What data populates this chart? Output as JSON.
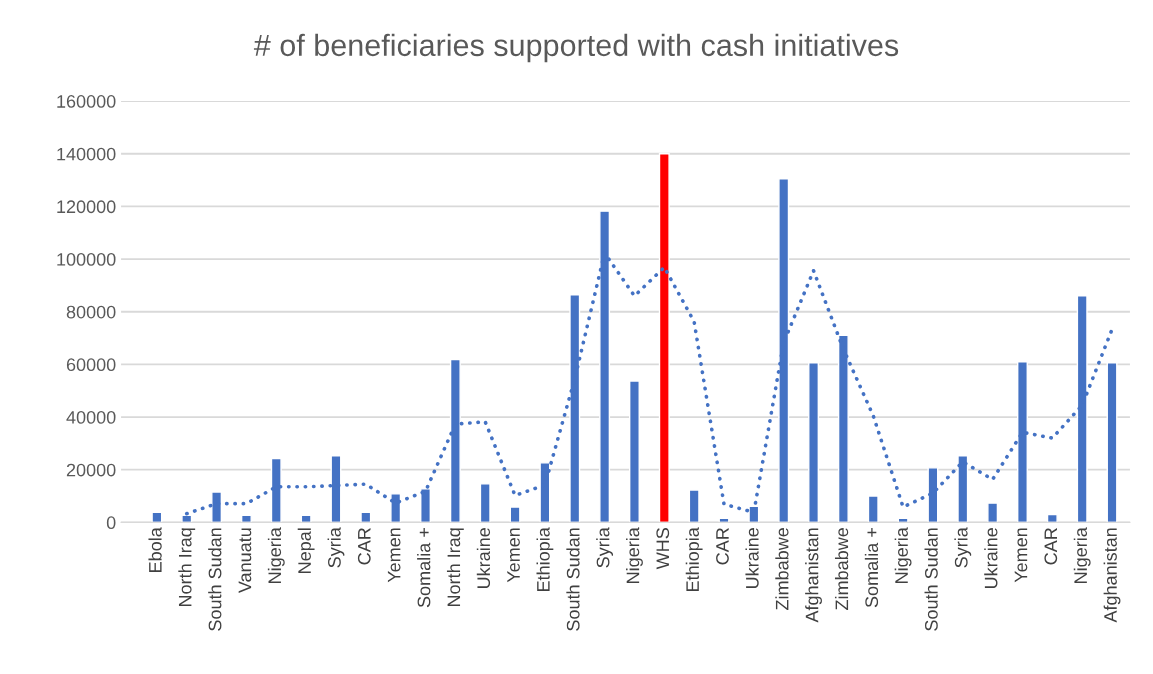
{
  "chart_data": {
    "type": "bar",
    "title": "# of beneficiaries supported with cash initiatives",
    "categories": [
      "Ebola",
      "North Iraq",
      "South Sudan",
      "Vanuatu",
      "Nigeria",
      "Nepal",
      "Syria",
      "CAR",
      "Yemen",
      "Somalia +",
      "North Iraq",
      "Ukraine",
      "Yemen",
      "Ethiopia",
      "South Sudan",
      "Syria",
      "Nigeria",
      "WHS",
      "Ethiopia",
      "CAR",
      "Ukraine",
      "Zimbabwe",
      "Afghanistan",
      "Zimbabwe",
      "Somalia +",
      "Nigeria",
      "South Sudan",
      "Syria",
      "Ukraine",
      "Yemen",
      "CAR",
      "Nigeria",
      "Afghanistan"
    ],
    "series": [
      {
        "values": [
          3800,
          2700,
          11500,
          2700,
          24200,
          2700,
          25300,
          3800,
          10800,
          12700,
          61800,
          14600,
          5800,
          22600,
          86400,
          118200,
          53700,
          140000,
          12300,
          1500,
          6100,
          130500,
          60600,
          71000,
          10000,
          1500,
          20700,
          25300,
          7300,
          61000,
          3000,
          86000,
          60600
        ],
        "colors": [
          "#4472c4",
          "#4472c4",
          "#4472c4",
          "#4472c4",
          "#4472c4",
          "#4472c4",
          "#4472c4",
          "#4472c4",
          "#4472c4",
          "#4472c4",
          "#4472c4",
          "#4472c4",
          "#4472c4",
          "#4472c4",
          "#4472c4",
          "#4472c4",
          "#4472c4",
          "#ff0000",
          "#4472c4",
          "#4472c4",
          "#4472c4",
          "#4472c4",
          "#4472c4",
          "#4472c4",
          "#4472c4",
          "#4472c4",
          "#4472c4",
          "#4472c4",
          "#4472c4",
          "#4472c4",
          "#4472c4",
          "#4472c4",
          "#4472c4"
        ]
      },
      {
        "type": "line",
        "color": "#4472c4",
        "line_style": "dotted",
        "values": [
          null,
          3300,
          7100,
          7100,
          13500,
          13500,
          14000,
          14500,
          7300,
          11800,
          37300,
          38200,
          10200,
          14200,
          54500,
          102300,
          86000,
          96900,
          76200,
          6900,
          3800,
          68300,
          95600,
          65800,
          40500,
          5800,
          11100,
          23000,
          16300,
          34200,
          32000,
          44500,
          73300
        ]
      }
    ],
    "ylim": [
      0,
      160000
    ],
    "yticks": [
      0,
      20000,
      40000,
      60000,
      80000,
      100000,
      120000,
      140000,
      160000
    ],
    "grid": "y",
    "legend": false
  }
}
